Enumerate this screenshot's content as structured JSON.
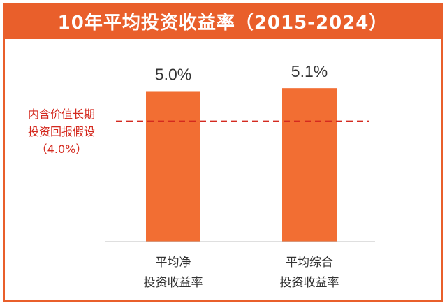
{
  "chart_data": {
    "type": "bar",
    "title": "10年平均投资收益率（2015-2024）",
    "categories": [
      [
        "平均净",
        "投资收益率"
      ],
      [
        "平均综合",
        "投资收益率"
      ]
    ],
    "values": [
      5.0,
      5.1
    ],
    "value_labels": [
      "5.0%",
      "5.1%"
    ],
    "ylim": [
      0,
      5.8
    ],
    "grid": false,
    "reference_line": {
      "value": 4.0,
      "label_lines": [
        "内含价值长期",
        "投资回报假设",
        "（4.0%）"
      ],
      "style": "dashed"
    }
  },
  "colors": {
    "bar": "#f26e33",
    "frame": "#e95f2b",
    "reference": "#d42a1f",
    "text": "#333333"
  }
}
